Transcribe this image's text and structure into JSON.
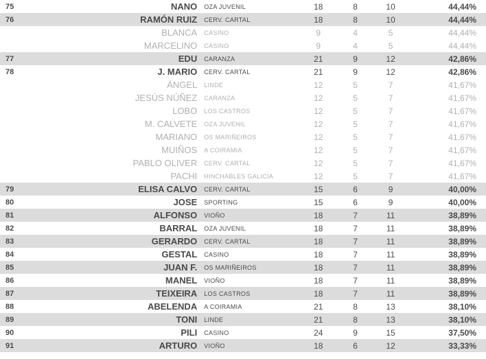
{
  "colors": {
    "row_bg_normal": "#ffffff",
    "row_bg_shaded": "#dcdcdc",
    "text_normal": "#4a4a4a",
    "text_dim": "#b0b0b0"
  },
  "columns": [
    "rank",
    "name",
    "team",
    "n1",
    "n2",
    "n3",
    "pct"
  ],
  "rows": [
    {
      "rank": "75",
      "name": "NANO",
      "team": "OZA JUVENIL",
      "n1": "18",
      "n2": "8",
      "n3": "10",
      "pct": "44,44%",
      "shaded": false,
      "dim": false
    },
    {
      "rank": "76",
      "name": "RAMÓN RUIZ",
      "team": "CERV. CARTAL",
      "n1": "18",
      "n2": "8",
      "n3": "10",
      "pct": "44,44%",
      "shaded": true,
      "dim": false
    },
    {
      "rank": "",
      "name": "BLANCA",
      "team": "CASINO",
      "n1": "9",
      "n2": "4",
      "n3": "5",
      "pct": "44,44%",
      "shaded": false,
      "dim": true
    },
    {
      "rank": "",
      "name": "MARCELINO",
      "team": "CASINO",
      "n1": "9",
      "n2": "4",
      "n3": "5",
      "pct": "44,44%",
      "shaded": false,
      "dim": true
    },
    {
      "rank": "77",
      "name": "EDU",
      "team": "CARANZA",
      "n1": "21",
      "n2": "9",
      "n3": "12",
      "pct": "42,86%",
      "shaded": true,
      "dim": false
    },
    {
      "rank": "78",
      "name": "J. MARIO",
      "team": "CERV. CARTAL",
      "n1": "21",
      "n2": "9",
      "n3": "12",
      "pct": "42,86%",
      "shaded": false,
      "dim": false
    },
    {
      "rank": "",
      "name": "ÁNGEL",
      "team": "LINDE",
      "n1": "12",
      "n2": "5",
      "n3": "7",
      "pct": "41,67%",
      "shaded": false,
      "dim": true
    },
    {
      "rank": "",
      "name": "JESÚS NÚÑEZ",
      "team": "CARANZA",
      "n1": "12",
      "n2": "5",
      "n3": "7",
      "pct": "41,67%",
      "shaded": false,
      "dim": true
    },
    {
      "rank": "",
      "name": "LOBO",
      "team": "LOS CASTROS",
      "n1": "12",
      "n2": "5",
      "n3": "7",
      "pct": "41,67%",
      "shaded": false,
      "dim": true
    },
    {
      "rank": "",
      "name": "M. CALVETE",
      "team": "OZA JUVENIL",
      "n1": "12",
      "n2": "5",
      "n3": "7",
      "pct": "41,67%",
      "shaded": false,
      "dim": true
    },
    {
      "rank": "",
      "name": "MARIANO",
      "team": "OS MARIÑEIROS",
      "n1": "12",
      "n2": "5",
      "n3": "7",
      "pct": "41,67%",
      "shaded": false,
      "dim": true
    },
    {
      "rank": "",
      "name": "MUIÑOS",
      "team": "A COIRAMIA",
      "n1": "12",
      "n2": "5",
      "n3": "7",
      "pct": "41,67%",
      "shaded": false,
      "dim": true
    },
    {
      "rank": "",
      "name": "PABLO OLIVER",
      "team": "CERV. CARTAL",
      "n1": "12",
      "n2": "5",
      "n3": "7",
      "pct": "41,67%",
      "shaded": false,
      "dim": true
    },
    {
      "rank": "",
      "name": "PACHI",
      "team": "HINCHABLES GALICIA",
      "n1": "12",
      "n2": "5",
      "n3": "7",
      "pct": "41,67%",
      "shaded": false,
      "dim": true
    },
    {
      "rank": "79",
      "name": "ELISA CALVO",
      "team": "CERV. CARTAL",
      "n1": "15",
      "n2": "6",
      "n3": "9",
      "pct": "40,00%",
      "shaded": true,
      "dim": false
    },
    {
      "rank": "80",
      "name": "JOSE",
      "team": "SPORTING",
      "n1": "15",
      "n2": "6",
      "n3": "9",
      "pct": "40,00%",
      "shaded": false,
      "dim": false
    },
    {
      "rank": "81",
      "name": "ALFONSO",
      "team": "VIOÑO",
      "n1": "18",
      "n2": "7",
      "n3": "11",
      "pct": "38,89%",
      "shaded": true,
      "dim": false
    },
    {
      "rank": "82",
      "name": "BARRAL",
      "team": "OZA JUVENIL",
      "n1": "18",
      "n2": "7",
      "n3": "11",
      "pct": "38,89%",
      "shaded": false,
      "dim": false
    },
    {
      "rank": "83",
      "name": "GERARDO",
      "team": "CERV. CARTAL",
      "n1": "18",
      "n2": "7",
      "n3": "11",
      "pct": "38,89%",
      "shaded": true,
      "dim": false
    },
    {
      "rank": "84",
      "name": "GESTAL",
      "team": "CASINO",
      "n1": "18",
      "n2": "7",
      "n3": "11",
      "pct": "38,89%",
      "shaded": false,
      "dim": false
    },
    {
      "rank": "85",
      "name": "JUAN F.",
      "team": "OS MARIÑEIROS",
      "n1": "18",
      "n2": "7",
      "n3": "11",
      "pct": "38,89%",
      "shaded": true,
      "dim": false
    },
    {
      "rank": "86",
      "name": "MANEL",
      "team": "VIOÑO",
      "n1": "18",
      "n2": "7",
      "n3": "11",
      "pct": "38,89%",
      "shaded": false,
      "dim": false
    },
    {
      "rank": "87",
      "name": "TEIXEIRA",
      "team": "LOS CASTROS",
      "n1": "18",
      "n2": "7",
      "n3": "11",
      "pct": "38,89%",
      "shaded": true,
      "dim": false
    },
    {
      "rank": "88",
      "name": "ABELENDA",
      "team": "A COIRAMIA",
      "n1": "21",
      "n2": "8",
      "n3": "13",
      "pct": "38,10%",
      "shaded": false,
      "dim": false
    },
    {
      "rank": "89",
      "name": "TONI",
      "team": "LINDE",
      "n1": "21",
      "n2": "8",
      "n3": "13",
      "pct": "38,10%",
      "shaded": true,
      "dim": false
    },
    {
      "rank": "90",
      "name": "PILI",
      "team": "CASINO",
      "n1": "24",
      "n2": "9",
      "n3": "15",
      "pct": "37,50%",
      "shaded": false,
      "dim": false
    },
    {
      "rank": "91",
      "name": "ARTURO",
      "team": "VIOÑO",
      "n1": "18",
      "n2": "6",
      "n3": "12",
      "pct": "33,33%",
      "shaded": true,
      "dim": false
    }
  ]
}
